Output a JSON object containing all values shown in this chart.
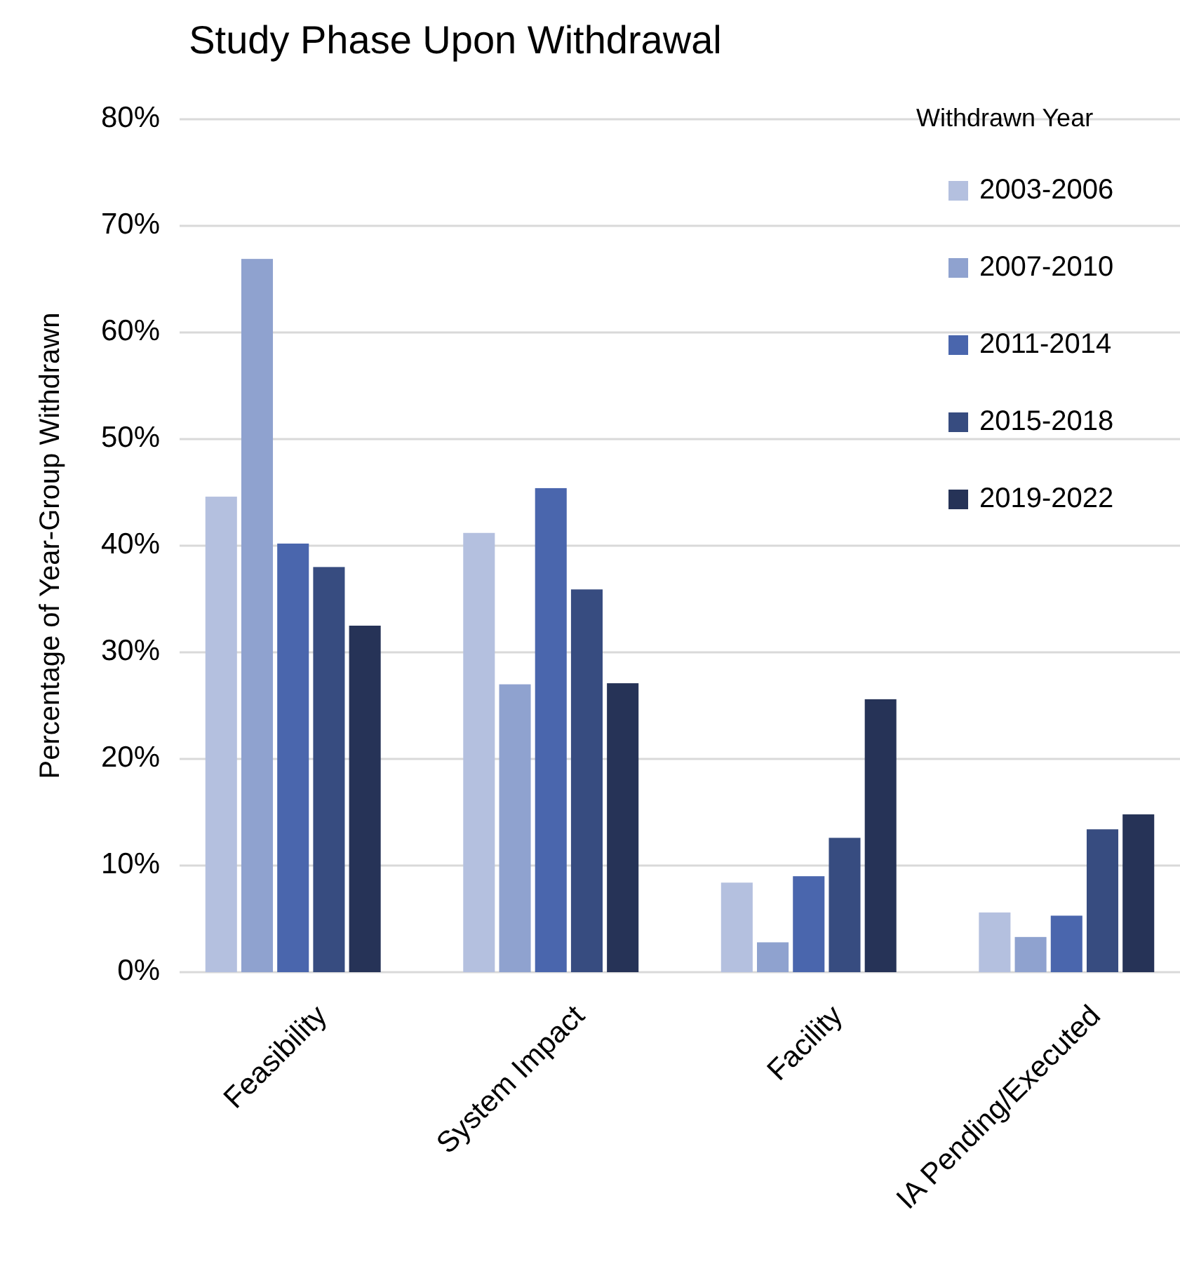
{
  "chart_data": {
    "type": "bar",
    "title": "Study Phase Upon Withdrawal",
    "ylabel": "Percentage of Year-Group Withdrawn",
    "legend_title": "Withdrawn Year",
    "categories": [
      "Feasibility",
      "System Impact",
      "Facility",
      "IA Pending/Executed"
    ],
    "series": [
      {
        "name": "2003-2006",
        "color": "#b4c0df",
        "values": [
          44.6,
          41.2,
          8.4,
          5.6
        ]
      },
      {
        "name": "2007-2010",
        "color": "#8fa2cf",
        "values": [
          66.9,
          27.0,
          2.8,
          3.3
        ]
      },
      {
        "name": "2011-2014",
        "color": "#4a66ad",
        "values": [
          40.2,
          45.4,
          9.0,
          5.3
        ]
      },
      {
        "name": "2015-2018",
        "color": "#374c80",
        "values": [
          38.0,
          35.9,
          12.6,
          13.4
        ]
      },
      {
        "name": "2019-2022",
        "color": "#263357",
        "values": [
          32.5,
          27.1,
          25.6,
          14.8
        ]
      }
    ],
    "ylim": [
      0,
      80
    ],
    "yticks": [
      {
        "value": 0,
        "label": "0%"
      },
      {
        "value": 10,
        "label": "10%"
      },
      {
        "value": 20,
        "label": "20%"
      },
      {
        "value": 30,
        "label": "30%"
      },
      {
        "value": 40,
        "label": "40%"
      },
      {
        "value": 50,
        "label": "50%"
      },
      {
        "value": 60,
        "label": "60%"
      },
      {
        "value": 70,
        "label": "70%"
      },
      {
        "value": 80,
        "label": "80%"
      }
    ],
    "grid": "y",
    "legend": "top right"
  }
}
